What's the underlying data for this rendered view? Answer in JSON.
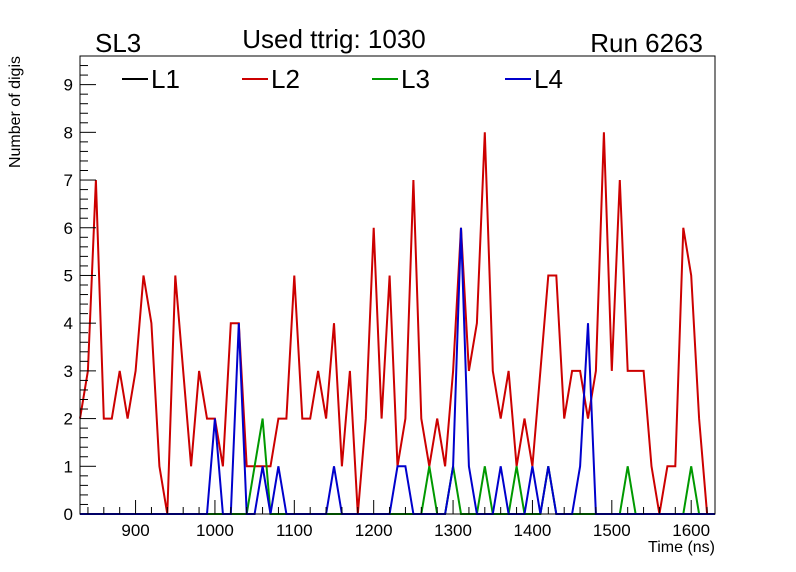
{
  "header": {
    "left_label": "SL3",
    "title": "Used ttrig: 1030",
    "right_label": "Run 6263"
  },
  "chart_data": {
    "type": "line",
    "xlabel": "Time (ns)",
    "ylabel": "Number of digis",
    "xlim": [
      830,
      1630
    ],
    "ylim": [
      0,
      9.6
    ],
    "x_ticks": [
      900,
      1000,
      1100,
      1200,
      1300,
      1400,
      1500,
      1600
    ],
    "y_ticks": [
      0,
      1,
      2,
      3,
      4,
      5,
      6,
      7,
      8,
      9
    ],
    "legend_position": "top",
    "grid": false,
    "series": [
      {
        "name": "L1",
        "color": "#000000",
        "points": []
      },
      {
        "name": "L2",
        "color": "#cc0000",
        "points": [
          [
            830,
            2
          ],
          [
            840,
            3
          ],
          [
            850,
            7
          ],
          [
            860,
            2
          ],
          [
            870,
            2
          ],
          [
            880,
            3
          ],
          [
            890,
            2
          ],
          [
            900,
            3
          ],
          [
            910,
            5
          ],
          [
            920,
            4
          ],
          [
            930,
            1
          ],
          [
            940,
            0
          ],
          [
            950,
            5
          ],
          [
            960,
            3
          ],
          [
            970,
            1
          ],
          [
            980,
            3
          ],
          [
            990,
            2
          ],
          [
            1000,
            2
          ],
          [
            1010,
            1
          ],
          [
            1020,
            4
          ],
          [
            1030,
            4
          ],
          [
            1040,
            1
          ],
          [
            1050,
            1
          ],
          [
            1060,
            1
          ],
          [
            1070,
            1
          ],
          [
            1080,
            2
          ],
          [
            1090,
            2
          ],
          [
            1100,
            5
          ],
          [
            1110,
            2
          ],
          [
            1120,
            2
          ],
          [
            1130,
            3
          ],
          [
            1140,
            2
          ],
          [
            1150,
            4
          ],
          [
            1160,
            1
          ],
          [
            1170,
            3
          ],
          [
            1180,
            0
          ],
          [
            1190,
            2
          ],
          [
            1200,
            6
          ],
          [
            1210,
            2
          ],
          [
            1220,
            5
          ],
          [
            1230,
            1
          ],
          [
            1240,
            2
          ],
          [
            1250,
            7
          ],
          [
            1260,
            2
          ],
          [
            1270,
            1
          ],
          [
            1280,
            2
          ],
          [
            1290,
            1
          ],
          [
            1300,
            3
          ],
          [
            1310,
            6
          ],
          [
            1320,
            3
          ],
          [
            1330,
            4
          ],
          [
            1340,
            8
          ],
          [
            1350,
            3
          ],
          [
            1360,
            2
          ],
          [
            1370,
            3
          ],
          [
            1380,
            1
          ],
          [
            1390,
            2
          ],
          [
            1400,
            1
          ],
          [
            1410,
            3
          ],
          [
            1420,
            5
          ],
          [
            1430,
            5
          ],
          [
            1440,
            2
          ],
          [
            1450,
            3
          ],
          [
            1460,
            3
          ],
          [
            1470,
            2
          ],
          [
            1480,
            3
          ],
          [
            1490,
            8
          ],
          [
            1500,
            3
          ],
          [
            1510,
            7
          ],
          [
            1520,
            3
          ],
          [
            1530,
            3
          ],
          [
            1540,
            3
          ],
          [
            1550,
            1
          ],
          [
            1560,
            0
          ],
          [
            1570,
            1
          ],
          [
            1580,
            1
          ],
          [
            1590,
            6
          ],
          [
            1600,
            5
          ],
          [
            1610,
            2
          ],
          [
            1620,
            0
          ]
        ]
      },
      {
        "name": "L3",
        "color": "#009900",
        "points": [
          [
            830,
            0
          ],
          [
            1040,
            0
          ],
          [
            1050,
            1
          ],
          [
            1060,
            2
          ],
          [
            1070,
            0
          ],
          [
            1260,
            0
          ],
          [
            1270,
            1
          ],
          [
            1280,
            0
          ],
          [
            1290,
            0
          ],
          [
            1300,
            1
          ],
          [
            1310,
            0
          ],
          [
            1330,
            0
          ],
          [
            1340,
            1
          ],
          [
            1350,
            0
          ],
          [
            1370,
            0
          ],
          [
            1380,
            1
          ],
          [
            1390,
            0
          ],
          [
            1410,
            0
          ],
          [
            1420,
            1
          ],
          [
            1430,
            0
          ],
          [
            1510,
            0
          ],
          [
            1520,
            1
          ],
          [
            1530,
            0
          ],
          [
            1590,
            0
          ],
          [
            1600,
            1
          ],
          [
            1610,
            0
          ],
          [
            1630,
            0
          ]
        ]
      },
      {
        "name": "L4",
        "color": "#0000cc",
        "points": [
          [
            830,
            0
          ],
          [
            990,
            0
          ],
          [
            1000,
            2
          ],
          [
            1010,
            0
          ],
          [
            1020,
            0
          ],
          [
            1030,
            4
          ],
          [
            1040,
            0
          ],
          [
            1050,
            0
          ],
          [
            1060,
            1
          ],
          [
            1070,
            0
          ],
          [
            1080,
            1
          ],
          [
            1090,
            0
          ],
          [
            1140,
            0
          ],
          [
            1150,
            1
          ],
          [
            1160,
            0
          ],
          [
            1220,
            0
          ],
          [
            1230,
            1
          ],
          [
            1240,
            1
          ],
          [
            1250,
            0
          ],
          [
            1290,
            0
          ],
          [
            1300,
            1
          ],
          [
            1310,
            6
          ],
          [
            1320,
            1
          ],
          [
            1330,
            0
          ],
          [
            1350,
            0
          ],
          [
            1360,
            1
          ],
          [
            1370,
            0
          ],
          [
            1390,
            0
          ],
          [
            1400,
            1
          ],
          [
            1410,
            0
          ],
          [
            1420,
            1
          ],
          [
            1430,
            0
          ],
          [
            1450,
            0
          ],
          [
            1460,
            1
          ],
          [
            1470,
            4
          ],
          [
            1480,
            0
          ],
          [
            1630,
            0
          ]
        ]
      }
    ]
  }
}
